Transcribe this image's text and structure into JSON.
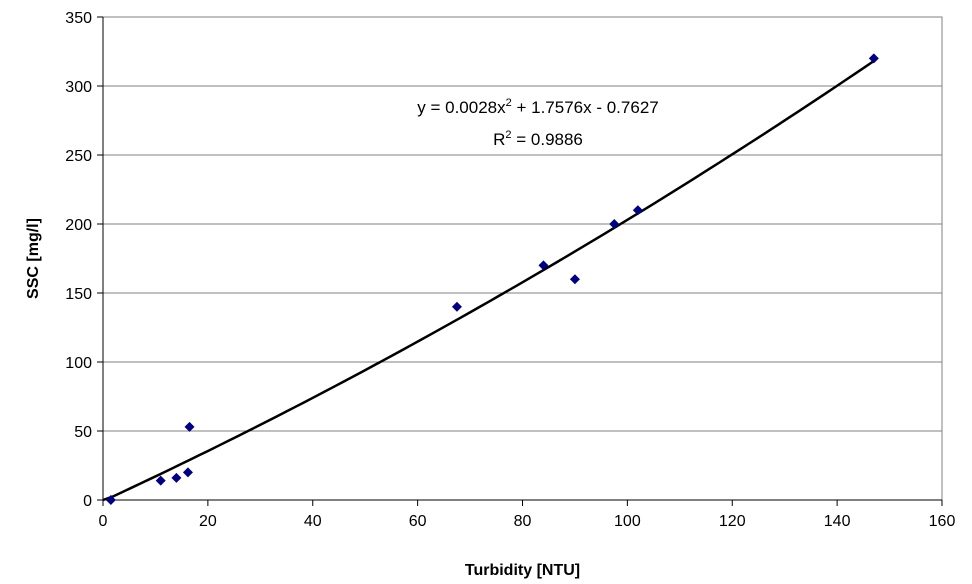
{
  "chart_data": {
    "type": "scatter",
    "xlabel": "Turbidity [NTU]",
    "ylabel": "SSC [mg/l]",
    "xlim": [
      0,
      160
    ],
    "ylim": [
      0,
      350
    ],
    "x_ticks": [
      "0",
      "20",
      "40",
      "60",
      "80",
      "100",
      "120",
      "140",
      "160"
    ],
    "y_ticks": [
      "0",
      "50",
      "100",
      "150",
      "200",
      "250",
      "300",
      "350"
    ],
    "grid": "horizontal",
    "series": [
      {
        "marker": "diamond",
        "color": "#000080",
        "points": [
          {
            "x": 1.5,
            "y": 0
          },
          {
            "x": 11,
            "y": 14
          },
          {
            "x": 14,
            "y": 16
          },
          {
            "x": 16.2,
            "y": 20
          },
          {
            "x": 16.5,
            "y": 53
          },
          {
            "x": 67.5,
            "y": 140
          },
          {
            "x": 84,
            "y": 170
          },
          {
            "x": 90,
            "y": 160
          },
          {
            "x": 97.5,
            "y": 200
          },
          {
            "x": 102,
            "y": 210
          },
          {
            "x": 147,
            "y": 320
          }
        ]
      }
    ],
    "trendline": {
      "kind": "polynomial",
      "coefficients": {
        "a": 0.0028,
        "b": 1.7576,
        "c": -0.7627
      },
      "x_range": [
        0,
        147
      ],
      "color": "#000000",
      "equation_parts": [
        "y = 0.0028x",
        "2",
        " + 1.7576x - 0.7627"
      ],
      "r2_parts": [
        "R",
        "2",
        " = 0.9886"
      ]
    }
  }
}
